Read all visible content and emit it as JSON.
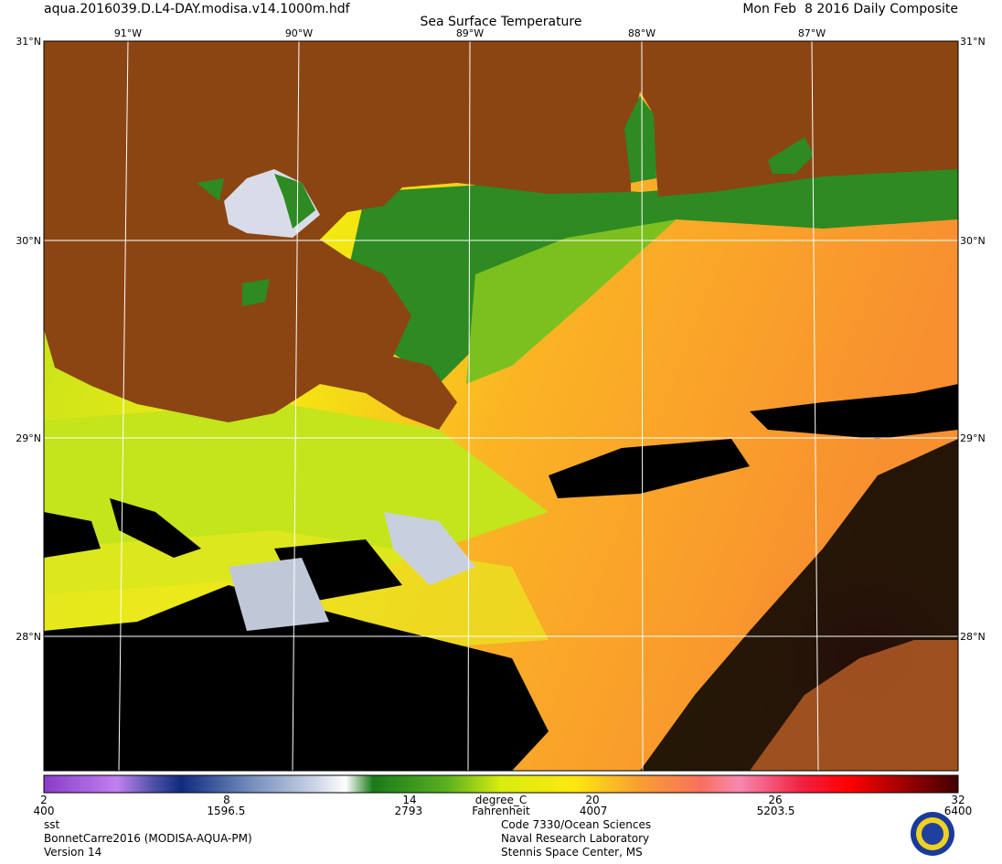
{
  "header": {
    "file": "aqua.2016039.D.L4-DAY.modisa.v14.1000m.hdf",
    "date": "Mon Feb  8 2016 Daily Composite",
    "title": "Sea Surface Temperature"
  },
  "map": {
    "lon_labels": [
      "91°W",
      "90°W",
      "89°W",
      "88°W",
      "87°W"
    ],
    "lat_labels": [
      "31°N",
      "30°N",
      "29°N",
      "28°N"
    ]
  },
  "colorbar": {
    "unit_c": "degree_C",
    "unit_f": "Fahrenheit",
    "lim": [
      2,
      32
    ],
    "ticks": [
      2,
      8,
      14,
      20,
      26,
      32
    ],
    "f_lim": [
      400,
      6400
    ],
    "f_ticks": [
      400,
      1596.5,
      2793,
      4007,
      5203.5,
      6400
    ]
  },
  "footer": {
    "left": [
      "sst",
      "BonnetCarre2016 (MODISA-AQUA-PM)",
      "Version 14"
    ],
    "right": [
      "Code 7330/Ocean Sciences",
      "Naval Research Laboratory",
      "Stennis Space Center, MS"
    ]
  }
}
